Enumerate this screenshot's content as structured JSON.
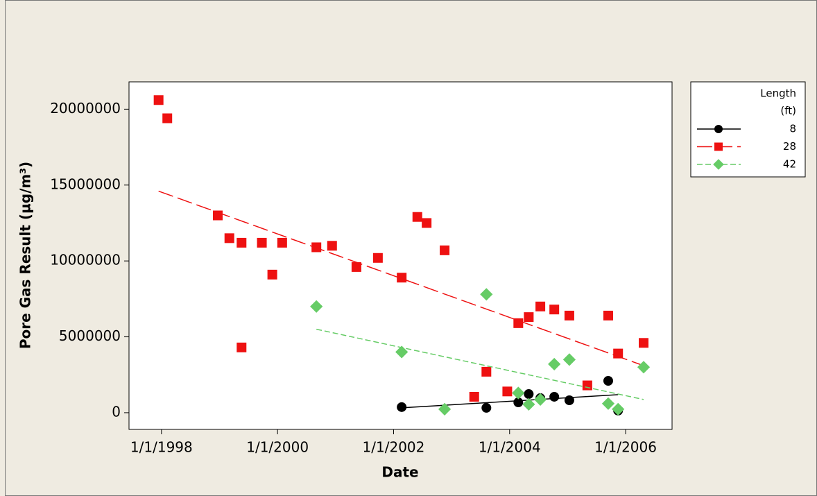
{
  "chart_data": {
    "type": "scatter",
    "xlabel": "Date",
    "ylabel": "Pore Gas Result (µg/m³)",
    "legend_title": [
      "Length",
      "(ft)"
    ],
    "legend": "outside-right-top",
    "xlim": [
      1997.44,
      2006.8
    ],
    "ylim": [
      -1100000,
      21800000
    ],
    "xticks": [
      {
        "value": 1998,
        "label": "1/1/1998"
      },
      {
        "value": 2000,
        "label": "1/1/2000"
      },
      {
        "value": 2002,
        "label": "1/1/2002"
      },
      {
        "value": 2004,
        "label": "1/1/2004"
      },
      {
        "value": 2006,
        "label": "1/1/2006"
      }
    ],
    "yticks": [
      0,
      5000000,
      10000000,
      15000000,
      20000000
    ],
    "series": [
      {
        "name": "8",
        "color": "#000000",
        "marker": "circle",
        "linestyle": "solid",
        "x": [
          2002.14,
          2003.6,
          2004.15,
          2004.33,
          2004.53,
          2004.77,
          2005.03,
          2005.7,
          2005.87
        ],
        "values": [
          370000,
          320000,
          680000,
          1230000,
          960000,
          1050000,
          820000,
          2100000,
          140000
        ],
        "trend_x": [
          2002.14,
          2005.87
        ],
        "trend_y": [
          320000,
          1190000
        ]
      },
      {
        "name": "28",
        "color": "#ee1111",
        "marker": "square",
        "linestyle": "longdash",
        "x": [
          1997.95,
          1998.1,
          1998.97,
          1999.17,
          1999.38,
          1999.38,
          1999.73,
          1999.91,
          2000.08,
          2000.67,
          2000.94,
          2001.36,
          2001.73,
          2002.14,
          2002.41,
          2002.57,
          2002.88,
          2003.39,
          2003.6,
          2003.96,
          2004.15,
          2004.33,
          2004.53,
          2004.77,
          2005.03,
          2005.34,
          2005.7,
          2005.87,
          2006.31
        ],
        "values": [
          20600000,
          19400000,
          13000000,
          11500000,
          11200000,
          4300000,
          11200000,
          9100000,
          11200000,
          10900000,
          11000000,
          9600000,
          10200000,
          8900000,
          12900000,
          12500000,
          10700000,
          1050000,
          2700000,
          1400000,
          5900000,
          6300000,
          7000000,
          6800000,
          6400000,
          1800000,
          6400000,
          3900000,
          4600000
        ],
        "trend_x": [
          1997.95,
          2006.31
        ],
        "trend_y": [
          14600000,
          3100000
        ]
      },
      {
        "name": "42",
        "color": "#66cc66",
        "marker": "diamond",
        "linestyle": "shortdash",
        "x": [
          2000.67,
          2002.14,
          2002.88,
          2003.6,
          2004.15,
          2004.33,
          2004.53,
          2004.77,
          2005.03,
          2005.7,
          2005.87,
          2006.31
        ],
        "values": [
          7000000,
          4000000,
          230000,
          7800000,
          1300000,
          550000,
          870000,
          3200000,
          3500000,
          600000,
          230000,
          3000000
        ],
        "trend_x": [
          2000.67,
          2006.31
        ],
        "trend_y": [
          5500000,
          870000
        ]
      }
    ]
  }
}
